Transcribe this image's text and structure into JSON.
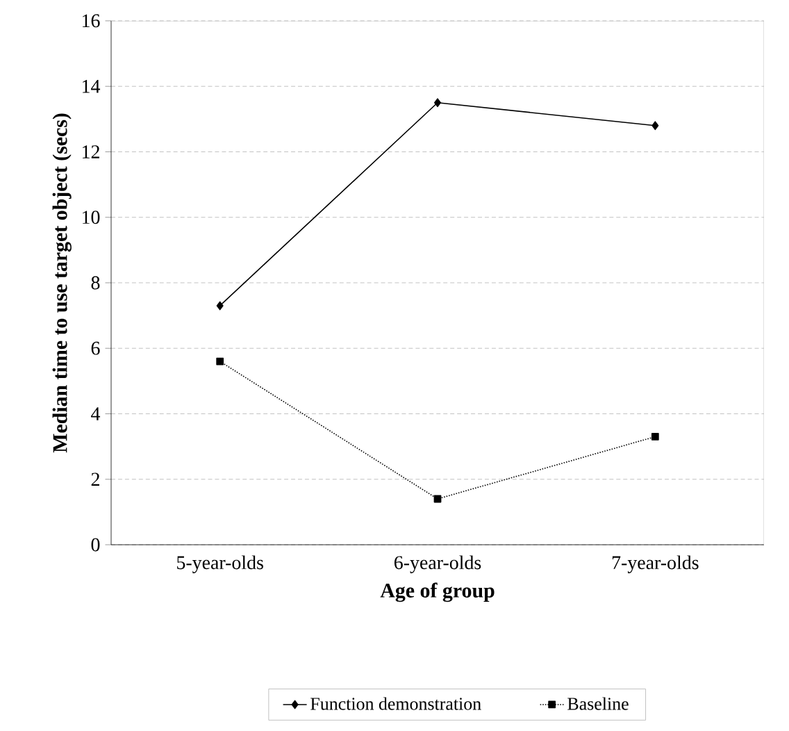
{
  "chart_data": {
    "type": "line",
    "xlabel": "Age of group",
    "ylabel": "Median time to use target object (secs)",
    "categories": [
      "5-year-olds",
      "6-year-olds",
      "7-year-olds"
    ],
    "series": [
      {
        "name": "Function demonstration",
        "color": "#000000",
        "values": [
          7.3,
          13.5,
          12.8
        ],
        "marker": "diamond",
        "line_style": "solid"
      },
      {
        "name": "Baseline",
        "color": "#000000",
        "values": [
          5.6,
          1.4,
          3.3
        ],
        "marker": "square",
        "line_style": "dotted"
      }
    ],
    "ylim": [
      0,
      16
    ],
    "yticks": [
      0,
      2,
      4,
      6,
      8,
      10,
      12,
      14,
      16
    ],
    "grid": "y",
    "legend": "bottom"
  }
}
